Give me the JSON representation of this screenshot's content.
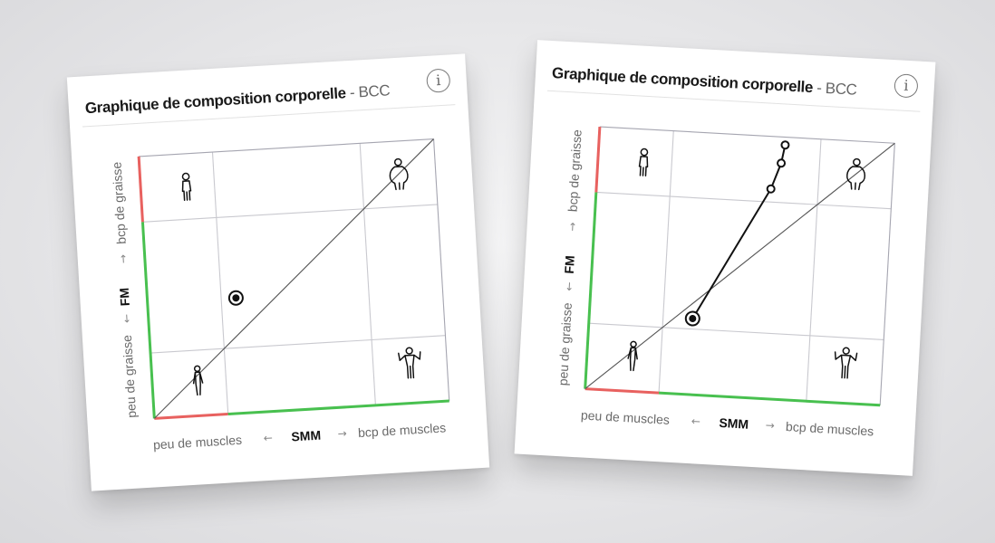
{
  "cards": [
    {
      "title": "Graphique de composition corporelle",
      "separator": "-",
      "subtitle": "BCC",
      "info_icon": "i",
      "x_axis": {
        "name": "SMM",
        "low": "peu de muscles",
        "high": "bcp de muscles",
        "arrow_left": "←",
        "arrow_right": "→"
      },
      "y_axis": {
        "name": "FM",
        "low": "peu de graisse",
        "high": "bcp de graisse",
        "arrow_down": "←",
        "arrow_up": "→"
      }
    },
    {
      "title": "Graphique de composition corporelle",
      "separator": "-",
      "subtitle": "BCC",
      "info_icon": "i",
      "x_axis": {
        "name": "SMM",
        "low": "peu de muscles",
        "high": "bcp de muscles",
        "arrow_left": "←",
        "arrow_right": "→"
      },
      "y_axis": {
        "name": "FM",
        "low": "peu de graisse",
        "high": "bcp de graisse",
        "arrow_down": "←",
        "arrow_up": "→"
      }
    }
  ],
  "colors": {
    "red_zone": "#e8615f",
    "green_zone": "#48c04f",
    "grid": "#c9c9cf",
    "frame": "#a5a5b0",
    "diagonal": "#555555",
    "marker": "#111111"
  },
  "icons": [
    "slim-figure-icon",
    "overweight-figure-icon",
    "thin-figure-icon",
    "muscular-figure-icon"
  ],
  "chart_data": [
    {
      "type": "scatter",
      "xlabel": "SMM",
      "ylabel": "FM",
      "xlim": [
        0,
        100
      ],
      "ylim": [
        0,
        100
      ],
      "quadrant_divisions": [
        25,
        75
      ],
      "reference_line": {
        "from": [
          0,
          0
        ],
        "to": [
          100,
          100
        ]
      },
      "points": [
        {
          "x": 30,
          "y": 44,
          "current": true
        }
      ]
    },
    {
      "type": "line",
      "xlabel": "SMM",
      "ylabel": "FM",
      "xlim": [
        0,
        100
      ],
      "ylim": [
        0,
        100
      ],
      "quadrant_divisions": [
        25,
        75
      ],
      "reference_line": {
        "from": [
          0,
          0
        ],
        "to": [
          100,
          100
        ]
      },
      "points": [
        {
          "x": 63,
          "y": 97
        },
        {
          "x": 62,
          "y": 90
        },
        {
          "x": 59,
          "y": 80
        },
        {
          "x": 35,
          "y": 29,
          "current": true
        }
      ]
    }
  ]
}
